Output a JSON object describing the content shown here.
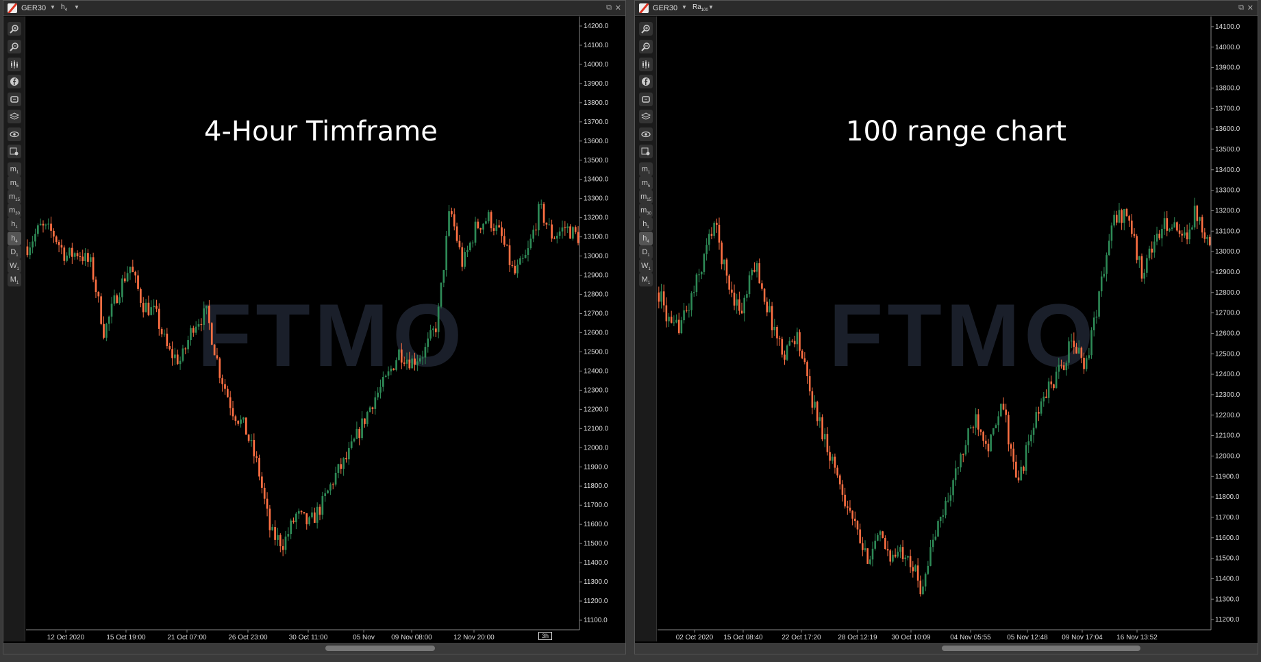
{
  "panels": [
    {
      "symbol": "GER30",
      "timeframe": "h",
      "timeframe_sub": "4",
      "title": "4-Hour Timframe",
      "badge": "3h",
      "x_ticks": [
        "12 Oct 2020",
        "15 Oct 19:00",
        "21 Oct 07:00",
        "26 Oct 23:00",
        "30 Oct 11:00",
        "05 Nov",
        "09 Nov 08:00",
        "12 Nov 20:00"
      ],
      "y_ticks": [
        "14200.0",
        "14100.0",
        "14000.0",
        "13900.0",
        "13800.0",
        "13700.0",
        "13600.0",
        "13500.0",
        "13400.0",
        "13300.0",
        "13200.0",
        "13100.0",
        "13000.0",
        "12900.0",
        "12800.0",
        "12700.0",
        "12600.0",
        "12500.0",
        "12400.0",
        "12300.0",
        "12200.0",
        "12100.0",
        "12000.0",
        "11900.0",
        "11800.0",
        "11700.0",
        "11600.0",
        "11500.0",
        "11400.0",
        "11300.0",
        "11200.0",
        "11100.0"
      ]
    },
    {
      "symbol": "GER30",
      "timeframe": "Ra",
      "timeframe_sub": "100",
      "title": "100 range chart",
      "badge": "",
      "x_ticks": [
        "02 Oct 2020",
        "15 Oct 08:40",
        "22 Oct 17:20",
        "28 Oct 12:19",
        "30 Oct 10:09",
        "04 Nov 05:55",
        "05 Nov 12:48",
        "09 Nov 17:04",
        "16 Nov 13:52"
      ],
      "y_ticks": [
        "14100.0",
        "14000.0",
        "13900.0",
        "13800.0",
        "13700.0",
        "13600.0",
        "13500.0",
        "13400.0",
        "13300.0",
        "13200.0",
        "13100.0",
        "13000.0",
        "12900.0",
        "12800.0",
        "12700.0",
        "12600.0",
        "12500.0",
        "12400.0",
        "12300.0",
        "12200.0",
        "12100.0",
        "12000.0",
        "11900.0",
        "11800.0",
        "11700.0",
        "11600.0",
        "11500.0",
        "11400.0",
        "11300.0",
        "11200.0"
      ]
    }
  ],
  "watermark": "FTMO",
  "tools": [
    {
      "icon": "zoom-in-icon",
      "label": ""
    },
    {
      "icon": "zoom-out-icon",
      "label": ""
    },
    {
      "icon": "chart-type-icon",
      "label": ""
    },
    {
      "icon": "facebook-icon",
      "label": ""
    },
    {
      "icon": "bot-icon",
      "label": ""
    },
    {
      "icon": "layers-icon",
      "label": ""
    },
    {
      "icon": "eye-icon",
      "label": ""
    },
    {
      "icon": "settings-icon",
      "label": ""
    },
    {
      "icon": "",
      "label": "m",
      "sub": "1"
    },
    {
      "icon": "",
      "label": "m",
      "sub": "5"
    },
    {
      "icon": "",
      "label": "m",
      "sub": "15"
    },
    {
      "icon": "",
      "label": "m",
      "sub": "30"
    },
    {
      "icon": "",
      "label": "h",
      "sub": "1"
    },
    {
      "icon": "",
      "label": "h",
      "sub": "4"
    },
    {
      "icon": "",
      "label": "D",
      "sub": "1"
    },
    {
      "icon": "",
      "label": "W",
      "sub": "1"
    },
    {
      "icon": "",
      "label": "M",
      "sub": "1"
    }
  ],
  "colors": {
    "bull": "#2e8b57",
    "bear": "#ff7043",
    "background": "#000000"
  },
  "chart_data": [
    {
      "type": "candlestick",
      "title": "4-Hour Timframe",
      "ylim": [
        11050,
        14250
      ],
      "close_path": [
        13050,
        13150,
        13120,
        13000,
        13020,
        12950,
        12600,
        12800,
        12950,
        12750,
        12700,
        12500,
        12450,
        12650,
        12700,
        12400,
        12200,
        12100,
        11900,
        11550,
        11500,
        11650,
        11600,
        11700,
        11850,
        11950,
        12100,
        12250,
        12350,
        12500,
        12450,
        12500,
        12650,
        13250,
        12950,
        13150,
        13200,
        13100,
        12900,
        13000,
        13250,
        13100,
        13150,
        13100
      ]
    },
    {
      "type": "candlestick",
      "title": "100 range chart",
      "ylim": [
        11150,
        14150
      ],
      "close_path": [
        12800,
        12600,
        12700,
        12900,
        13150,
        12850,
        12700,
        12950,
        12700,
        12500,
        12600,
        12300,
        12100,
        11900,
        11700,
        11500,
        11600,
        11500,
        11550,
        11350,
        11600,
        11800,
        12000,
        12200,
        12050,
        12250,
        11850,
        12100,
        12300,
        12400,
        12550,
        12450,
        12800,
        13150,
        13200,
        12900,
        13050,
        13150,
        13050,
        13200,
        13050
      ]
    }
  ]
}
